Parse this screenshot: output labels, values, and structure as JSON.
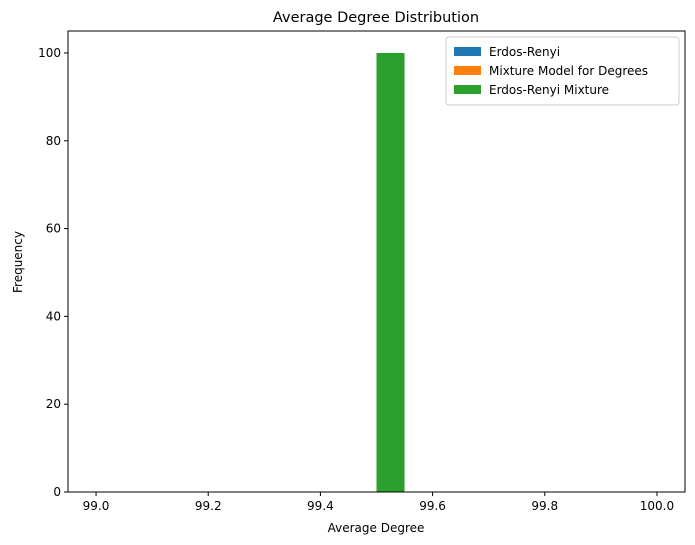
{
  "chart_data": {
    "type": "bar",
    "title": "Average Degree Distribution",
    "xlabel": "Average Degree",
    "ylabel": "Frequency",
    "xlim": [
      98.95,
      100.05
    ],
    "ylim": [
      0,
      105
    ],
    "xticks": [
      99.0,
      99.2,
      99.4,
      99.6,
      99.8,
      100.0
    ],
    "xtick_labels": [
      "99.0",
      "99.2",
      "99.4",
      "99.6",
      "99.8",
      "100.0"
    ],
    "yticks": [
      0,
      20,
      40,
      60,
      80,
      100
    ],
    "ytick_labels": [
      "0",
      "20",
      "40",
      "60",
      "80",
      "100"
    ],
    "grid": false,
    "legend_position": "top-right",
    "series": [
      {
        "name": "Erdos-Renyi",
        "color": "#1f77b4",
        "bars": [
          {
            "x0": 99.5,
            "x1": 99.55,
            "value": 0
          }
        ]
      },
      {
        "name": "Mixture Model for Degrees",
        "color": "#ff7f0e",
        "bars": [
          {
            "x0": 99.5,
            "x1": 99.55,
            "value": 0
          }
        ]
      },
      {
        "name": "Erdos-Renyi Mixture",
        "color": "#2ca02c",
        "bars": [
          {
            "x0": 99.5,
            "x1": 99.55,
            "value": 100
          }
        ]
      }
    ]
  }
}
